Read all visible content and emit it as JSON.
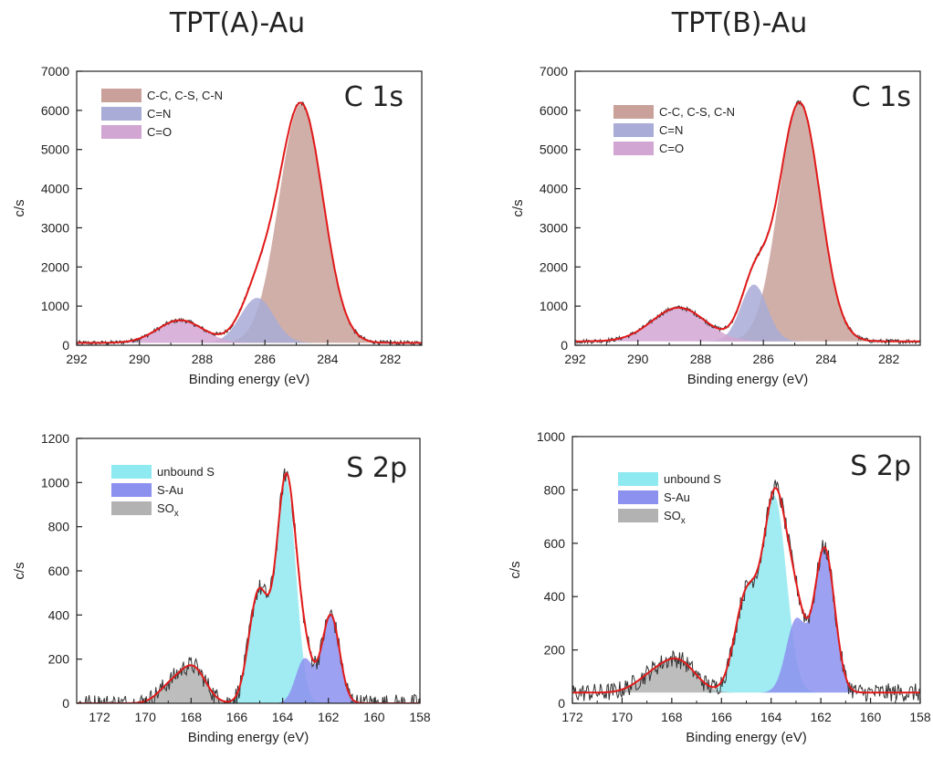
{
  "figure": {
    "titles": [
      "TPT(A)-Au",
      "TPT(B)-Au"
    ]
  },
  "colors": {
    "cc": "#c9a19a",
    "cn": "#a8acd6",
    "co": "#d2a6d2",
    "unbound": "#8fe9f0",
    "sau": "#8c90ef",
    "sox": "#b2b2b2",
    "envelope": "#e11a1a",
    "raw": "#333333"
  },
  "chart_data": [
    {
      "type": "area",
      "column_title": "TPT(A)-Au",
      "panel_label": "C 1s",
      "xlabel": "Binding energy (eV)",
      "ylabel": "c/s",
      "xlim": [
        292,
        281
      ],
      "ylim": [
        0,
        7000
      ],
      "xticks": [
        292,
        290,
        288,
        286,
        284,
        282
      ],
      "yticks": [
        0,
        1000,
        2000,
        3000,
        4000,
        5000,
        6000,
        7000
      ],
      "background": 60,
      "series": [
        {
          "name": "C-C, C-S, C-N",
          "color_key": "cc",
          "center": 284.85,
          "amplitude": 6100,
          "fwhm": 1.65
        },
        {
          "name": "C=N",
          "color_key": "cn",
          "center": 286.25,
          "amplitude": 1150,
          "fwhm": 1.25
        },
        {
          "name": "C=O",
          "color_key": "co",
          "center": 288.7,
          "amplitude": 580,
          "fwhm": 1.7
        }
      ]
    },
    {
      "type": "area",
      "column_title": "TPT(B)-Au",
      "panel_label": "C 1s",
      "xlabel": "Binding energy (eV)",
      "ylabel": "c/s",
      "xlim": [
        292,
        281
      ],
      "ylim": [
        0,
        7000
      ],
      "xticks": [
        292,
        290,
        288,
        286,
        284,
        282
      ],
      "yticks": [
        0,
        1000,
        2000,
        3000,
        4000,
        5000,
        6000,
        7000
      ],
      "background": 100,
      "series": [
        {
          "name": "C-C, C-S, C-N",
          "color_key": "cc",
          "center": 284.85,
          "amplitude": 6100,
          "fwhm": 1.55
        },
        {
          "name": "C=N",
          "color_key": "cn",
          "center": 286.3,
          "amplitude": 1450,
          "fwhm": 1.0
        },
        {
          "name": "C=O",
          "color_key": "co",
          "center": 288.7,
          "amplitude": 860,
          "fwhm": 2.0
        }
      ]
    },
    {
      "type": "area",
      "column_title": "TPT(A)-Au",
      "panel_label": "S 2p",
      "xlabel": "Binding energy (eV)",
      "ylabel": "c/s",
      "xlim": [
        173,
        158
      ],
      "ylim": [
        0,
        1200
      ],
      "xticks": [
        172,
        170,
        168,
        166,
        164,
        162,
        160,
        158
      ],
      "yticks": [
        0,
        200,
        400,
        600,
        800,
        1000,
        1200
      ],
      "background": 0,
      "series": [
        {
          "name": "unbound S",
          "color_key": "unbound",
          "peaks": [
            {
              "center": 163.85,
              "amplitude": 1010,
              "fwhm": 1.0
            },
            {
              "center": 165.05,
              "amplitude": 500,
              "fwhm": 1.0
            }
          ]
        },
        {
          "name": "S-Au",
          "color_key": "sau",
          "peaks": [
            {
              "center": 161.9,
              "amplitude": 400,
              "fwhm": 0.9
            },
            {
              "center": 163.05,
              "amplitude": 200,
              "fwhm": 0.9
            }
          ]
        },
        {
          "name": "SO",
          "name_subscript": "x",
          "color_key": "sox",
          "peaks": [
            {
              "center": 167.9,
              "amplitude": 155,
              "fwhm": 1.3
            },
            {
              "center": 168.9,
              "amplitude": 75,
              "fwhm": 1.3
            }
          ]
        }
      ]
    },
    {
      "type": "area",
      "column_title": "TPT(B)-Au",
      "panel_label": "S 2p",
      "xlabel": "Binding energy (eV)",
      "ylabel": "c/s",
      "xlim": [
        172,
        158
      ],
      "ylim": [
        0,
        1000
      ],
      "xticks": [
        172,
        170,
        168,
        166,
        164,
        162,
        160,
        158
      ],
      "yticks": [
        0,
        200,
        400,
        600,
        800,
        1000
      ],
      "background": 40,
      "series": [
        {
          "name": "unbound S",
          "color_key": "unbound",
          "peaks": [
            {
              "center": 163.85,
              "amplitude": 720,
              "fwhm": 1.1
            },
            {
              "center": 165.0,
              "amplitude": 360,
              "fwhm": 1.1
            }
          ]
        },
        {
          "name": "S-Au",
          "color_key": "sau",
          "peaks": [
            {
              "center": 161.85,
              "amplitude": 540,
              "fwhm": 0.95
            },
            {
              "center": 163.0,
              "amplitude": 270,
              "fwhm": 0.95
            }
          ]
        },
        {
          "name": "SO",
          "name_subscript": "x",
          "color_key": "sox",
          "peaks": [
            {
              "center": 167.7,
              "amplitude": 110,
              "fwhm": 1.6
            },
            {
              "center": 168.8,
              "amplitude": 55,
              "fwhm": 1.6
            }
          ]
        }
      ]
    }
  ]
}
